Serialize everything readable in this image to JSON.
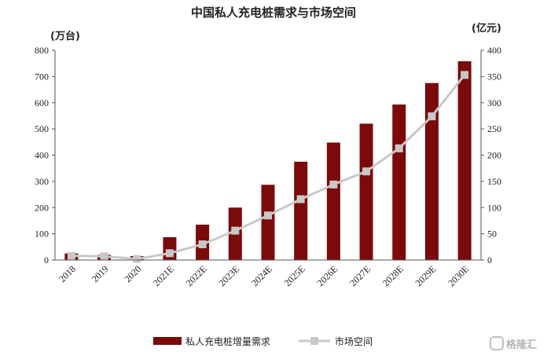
{
  "chart_data": {
    "type": "bar",
    "title": "中国私人充电桩需求与市场空间",
    "y_left_unit": "(万台)",
    "y_right_unit": "(亿元)",
    "categories": [
      "2018",
      "2019",
      "2020",
      "2021E",
      "2022E",
      "2023E",
      "2024E",
      "2025E",
      "2026E",
      "2027E",
      "2028E",
      "2029E",
      "2030E"
    ],
    "ylim_left": [
      0,
      800
    ],
    "ylim_right": [
      0,
      400
    ],
    "left_ticks": [
      0,
      100,
      200,
      300,
      400,
      500,
      600,
      700,
      800
    ],
    "right_ticks": [
      0,
      50,
      100,
      150,
      200,
      250,
      300,
      350,
      400
    ],
    "grid": false,
    "legend_position": "bottom",
    "bar_color": "#7b0a0a",
    "line_color": "#c8c8c8",
    "series": [
      {
        "name": "私人充电桩增量需求",
        "type": "bar",
        "axis": "left",
        "values": [
          25,
          20,
          15,
          87,
          135,
          200,
          287,
          375,
          448,
          520,
          593,
          675,
          758
        ]
      },
      {
        "name": "市场空间",
        "type": "line",
        "axis": "right",
        "values": [
          8,
          7,
          2,
          13,
          30,
          56,
          85,
          116,
          144,
          169,
          213,
          274,
          353
        ]
      }
    ]
  },
  "watermark": "格隆汇"
}
